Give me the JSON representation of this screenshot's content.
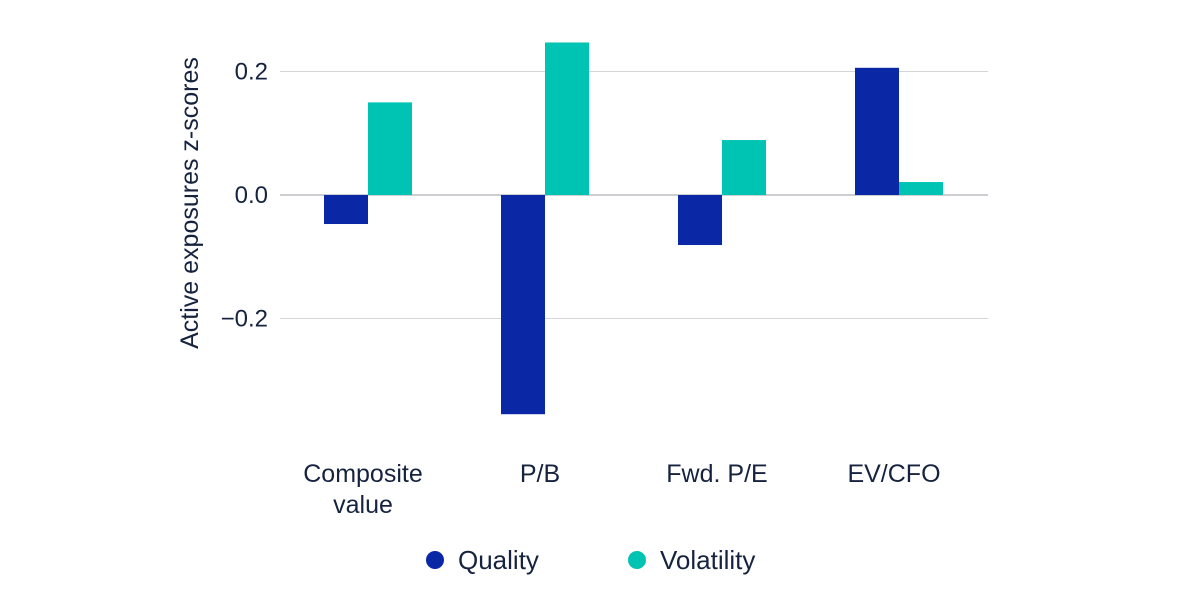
{
  "chart_data": {
    "type": "bar",
    "ylabel": "Active exposures z-scores",
    "categories": [
      [
        "Composite",
        "value"
      ],
      [
        "P/B"
      ],
      [
        "Fwd. P/E"
      ],
      [
        "EV/CFO"
      ]
    ],
    "series": [
      {
        "name": "Quality",
        "color": "#0a27a6",
        "values": [
          -0.047,
          -0.355,
          -0.081,
          0.206
        ]
      },
      {
        "name": "Volatility",
        "color": "#00c4b3",
        "values": [
          0.15,
          0.247,
          0.089,
          0.021
        ]
      }
    ],
    "yticks": [
      {
        "value": 0.2,
        "label": "0.2"
      },
      {
        "value": 0.0,
        "label": "0.0"
      },
      {
        "value": -0.2,
        "label": "−0.2"
      }
    ],
    "ylim": [
      -0.37,
      0.28
    ],
    "grid": true,
    "legend": "bottom"
  }
}
